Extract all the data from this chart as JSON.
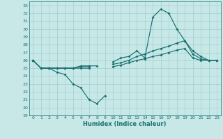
{
  "xlabel": "Humidex (Indice chaleur)",
  "background_color": "#c8e8e8",
  "grid_color": "#9ecfcf",
  "line_color": "#1a7070",
  "xlim": [
    -0.5,
    23.5
  ],
  "ylim": [
    19,
    33.5
  ],
  "yticks": [
    19,
    20,
    21,
    22,
    23,
    24,
    25,
    26,
    27,
    28,
    29,
    30,
    31,
    32,
    33
  ],
  "xticks": [
    0,
    1,
    2,
    3,
    4,
    5,
    6,
    7,
    8,
    9,
    10,
    11,
    12,
    13,
    14,
    15,
    16,
    17,
    18,
    19,
    20,
    21,
    22,
    23
  ],
  "x": [
    0,
    1,
    2,
    3,
    4,
    5,
    6,
    7,
    8,
    9,
    10,
    11,
    12,
    13,
    14,
    15,
    16,
    17,
    18,
    19,
    20,
    21,
    22,
    23
  ],
  "line1": [
    26,
    25,
    25,
    24.5,
    24.2,
    23,
    22.5,
    21,
    20.5,
    21.5,
    null,
    null,
    null,
    null,
    null,
    null,
    null,
    null,
    null,
    null,
    null,
    null,
    null,
    null
  ],
  "line2": [
    26,
    25,
    25,
    25,
    25,
    25,
    25.3,
    25.3,
    25.3,
    null,
    25.8,
    26.3,
    26.5,
    27.2,
    26.3,
    31.5,
    32.5,
    32.0,
    30.0,
    28.5,
    27.2,
    26.5,
    26.0,
    26.0
  ],
  "line3": [
    26,
    25,
    25,
    25,
    25,
    25,
    25.2,
    25.2,
    null,
    null,
    25.5,
    25.7,
    26.0,
    26.5,
    26.8,
    27.2,
    27.5,
    27.8,
    28.2,
    28.5,
    26.8,
    26.2,
    26.0,
    26.0
  ],
  "line4": [
    26,
    25,
    25,
    25,
    25,
    25,
    25,
    25,
    null,
    null,
    25.2,
    25.4,
    25.7,
    26.0,
    26.2,
    26.5,
    26.7,
    27.0,
    27.3,
    27.5,
    26.3,
    26.0,
    26.0,
    26.0
  ]
}
